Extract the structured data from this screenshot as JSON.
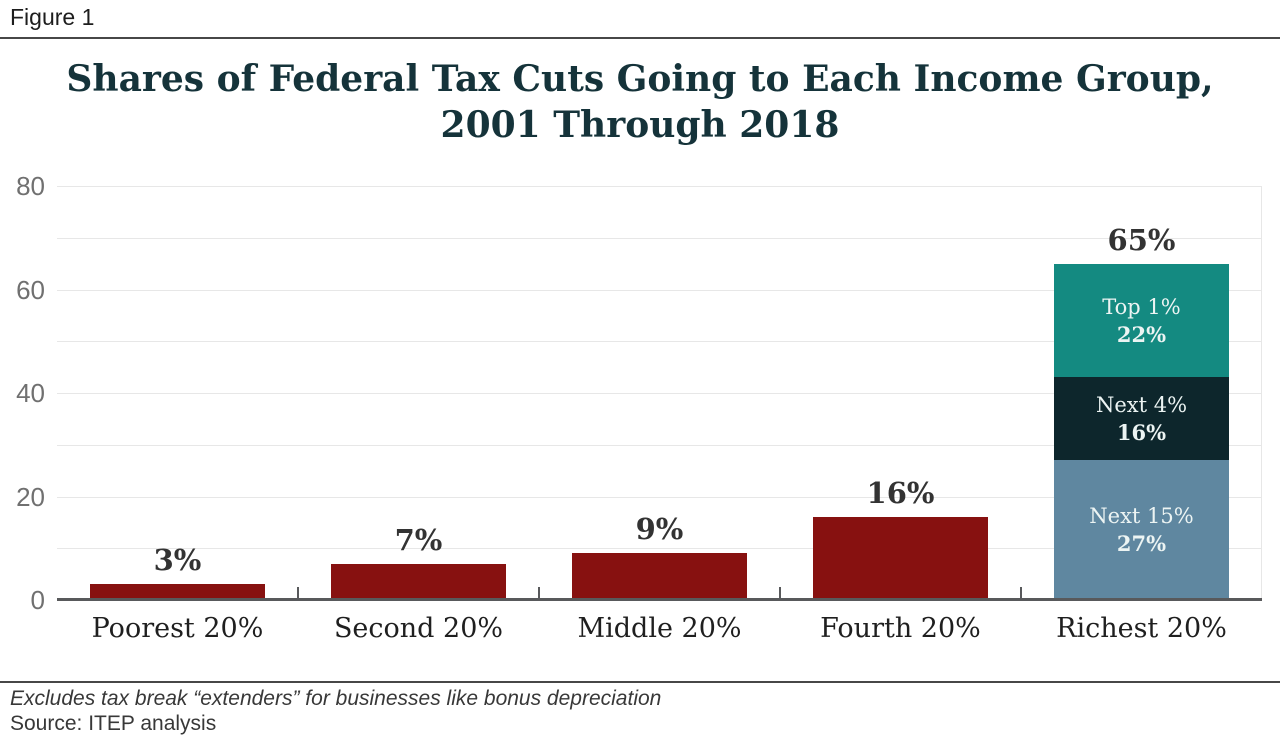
{
  "figure_label": "Figure 1",
  "chart_data": {
    "type": "bar",
    "title": "Shares of Federal Tax Cuts Going to Each Income Group, 2001 Through 2018",
    "title_lines": [
      "Shares of Federal Tax Cuts Going to Each Income Group,",
      "2001 Through 2018"
    ],
    "categories": [
      "Poorest 20%",
      "Second 20%",
      "Middle 20%",
      "Fourth 20%",
      "Richest 20%"
    ],
    "values": [
      3,
      7,
      9,
      16,
      65
    ],
    "value_labels": [
      "3%",
      "7%",
      "9%",
      "16%",
      "65%"
    ],
    "ylim": [
      0,
      80
    ],
    "yticks": [
      0,
      20,
      40,
      60,
      80
    ],
    "gridline_step": 10,
    "bar_color": "#871110",
    "grid_on": true,
    "legend_position": "none",
    "xlabel": "",
    "ylabel": "",
    "richest_breakdown": {
      "category": "Richest 20%",
      "total_label": "65%",
      "segments": [
        {
          "label": "Top 1%",
          "value_label": "22%",
          "value": 22,
          "color": "#148a81"
        },
        {
          "label": "Next 4%",
          "value_label": "16%",
          "value": 16,
          "color": "#0d262c"
        },
        {
          "label": "Next 15%",
          "value_label": "27%",
          "value": 27,
          "color": "#5f87a0"
        }
      ]
    }
  },
  "footer": {
    "note": "Excludes tax break “extenders” for businesses like bonus depreciation",
    "source": "Source: ITEP analysis"
  },
  "colors": {
    "title": "#15333a",
    "bar_red": "#871110",
    "teal": "#148a81",
    "dark_teal": "#0d262c",
    "slate_blue": "#5f87a0",
    "axis": "#58595b",
    "gridline": "#e7e7e7",
    "y_label": "#707070",
    "value_label": "#333333",
    "segment_text": "#ecf4f3"
  }
}
